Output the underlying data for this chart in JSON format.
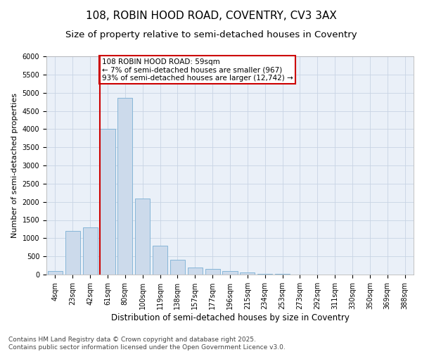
{
  "title_line1": "108, ROBIN HOOD ROAD, COVENTRY, CV3 3AX",
  "title_line2": "Size of property relative to semi-detached houses in Coventry",
  "xlabel": "Distribution of semi-detached houses by size in Coventry",
  "ylabel": "Number of semi-detached properties",
  "categories": [
    "4sqm",
    "23sqm",
    "42sqm",
    "61sqm",
    "80sqm",
    "100sqm",
    "119sqm",
    "138sqm",
    "157sqm",
    "177sqm",
    "196sqm",
    "215sqm",
    "234sqm",
    "253sqm",
    "273sqm",
    "292sqm",
    "311sqm",
    "330sqm",
    "350sqm",
    "369sqm",
    "388sqm"
  ],
  "values": [
    100,
    1200,
    1300,
    4000,
    4850,
    2100,
    800,
    400,
    200,
    150,
    100,
    50,
    20,
    10,
    5,
    3,
    2,
    1,
    1,
    0,
    0
  ],
  "bar_color": "#ccdaeb",
  "bar_edge_color": "#7aafd4",
  "vline_color": "#cc0000",
  "annotation_text": "108 ROBIN HOOD ROAD: 59sqm\n← 7% of semi-detached houses are smaller (967)\n93% of semi-detached houses are larger (12,742) →",
  "annotation_box_color": "#cc0000",
  "ylim": [
    0,
    6000
  ],
  "yticks": [
    0,
    500,
    1000,
    1500,
    2000,
    2500,
    3000,
    3500,
    4000,
    4500,
    5000,
    5500,
    6000
  ],
  "grid_color": "#c8d4e4",
  "background_color": "#eaf0f8",
  "footer_text": "Contains HM Land Registry data © Crown copyright and database right 2025.\nContains public sector information licensed under the Open Government Licence v3.0.",
  "title_fontsize": 11,
  "subtitle_fontsize": 9.5,
  "xlabel_fontsize": 8.5,
  "ylabel_fontsize": 8,
  "tick_fontsize": 7,
  "footer_fontsize": 6.5,
  "annot_fontsize": 7.5
}
